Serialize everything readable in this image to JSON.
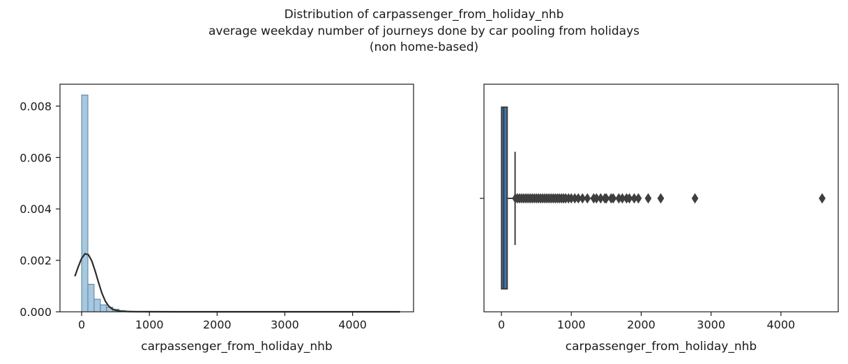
{
  "figure": {
    "title_lines": [
      "Distribution of carpassenger_from_holiday_nhb",
      "average weekday number of journeys done by car pooling from holidays",
      "(non home-based)"
    ]
  },
  "chart_data": [
    {
      "type": "histogram",
      "xlabel": "carpassenger_from_holiday_nhb",
      "ylabel": "",
      "xlim": [
        -320,
        4900
      ],
      "ylim": [
        0,
        0.00885
      ],
      "x_ticks": [
        0,
        1000,
        2000,
        3000,
        4000
      ],
      "x_tick_labels": [
        "0",
        "1000",
        "2000",
        "3000",
        "4000"
      ],
      "y_ticks": [
        0,
        0.002,
        0.004,
        0.006,
        0.008
      ],
      "y_tick_labels": [
        "0.000",
        "0.002",
        "0.004",
        "0.006",
        "0.008"
      ],
      "bin_width": 92,
      "bin_starts": [
        0,
        92,
        184,
        276,
        368,
        460,
        552,
        644,
        736
      ],
      "density": [
        0.00843,
        0.00107,
        0.00049,
        0.00027,
        0.00018,
        0.0001,
        5e-05,
        2e-05,
        1e-05
      ],
      "kde": {
        "x": [
          -100,
          -50,
          0,
          50,
          100,
          150,
          200,
          250,
          300,
          350,
          400,
          450,
          500,
          600,
          700,
          800,
          1000,
          1500,
          2000,
          3000,
          4000,
          4700
        ],
        "y": [
          0.00138,
          0.00175,
          0.00208,
          0.00226,
          0.00222,
          0.00198,
          0.00158,
          0.00113,
          0.00072,
          0.00041,
          0.00022,
          0.00011,
          6e-05,
          2e-05,
          1e-05,
          5e-06,
          2e-06,
          1e-06,
          0,
          0,
          0,
          0
        ]
      },
      "colors": {
        "bar_fill": "#a6c8e0",
        "bar_edge": "#5d7d95",
        "kde": "#2b2b2b"
      }
    },
    {
      "type": "boxplot",
      "xlabel": "carpassenger_from_holiday_nhb",
      "xlim": [
        -250,
        4820
      ],
      "x_ticks": [
        0,
        1000,
        2000,
        3000,
        4000
      ],
      "x_tick_labels": [
        "0",
        "1000",
        "2000",
        "3000",
        "4000"
      ],
      "box": {
        "whisker_low": 0,
        "q1": 2,
        "median": 32,
        "q3": 82,
        "whisker_high": 195
      },
      "outliers": [
        200,
        230,
        260,
        290,
        320,
        350,
        380,
        410,
        440,
        470,
        500,
        530,
        560,
        590,
        620,
        650,
        680,
        710,
        740,
        770,
        800,
        830,
        860,
        890,
        920,
        960,
        1000,
        1050,
        1100,
        1160,
        1230,
        1320,
        1360,
        1420,
        1480,
        1500,
        1570,
        1600,
        1680,
        1730,
        1790,
        1830,
        1900,
        1960,
        2100,
        2280,
        2770,
        4590
      ],
      "colors": {
        "box_fill": "#3a78b0",
        "line": "#3f3f3f"
      }
    }
  ]
}
